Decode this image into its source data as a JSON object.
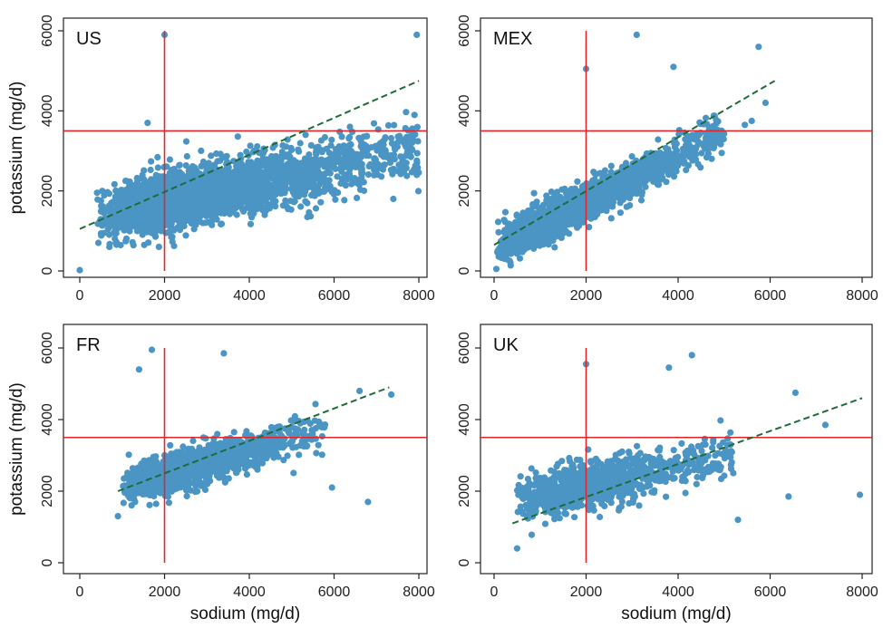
{
  "chart_data": [
    {
      "type": "scatter",
      "title": "US",
      "xlabel": "",
      "ylabel": "potassium (mg/d)",
      "xlim": [
        0,
        8000
      ],
      "ylim": [
        0,
        6000
      ],
      "xticks": [
        "0",
        "2000",
        "4000",
        "6000",
        "8000"
      ],
      "yticks": [
        "0",
        "2000",
        "4000",
        "6000"
      ],
      "marker_color": "#4a95c4",
      "cloud": {
        "x_range": [
          400,
          8000
        ],
        "y_min": [
          900,
          100
        ],
        "y_max": [
          1900,
          6000
        ],
        "sd": 650,
        "n": 2600,
        "seed": 11
      },
      "series": [
        {
          "values": [
            [
              0,
              20
            ],
            [
              700,
              600
            ],
            [
              1600,
              3700
            ],
            [
              2000,
              5900
            ],
            [
              7400,
              1800
            ],
            [
              7950,
              2400
            ],
            [
              7950,
              5900
            ]
          ]
        }
      ],
      "fit_line": {
        "x": [
          0,
          8000
        ],
        "y": [
          1050,
          4750
        ]
      },
      "reference_lines": {
        "x": 2000,
        "y": 3500
      }
    },
    {
      "type": "scatter",
      "title": "MEX",
      "xlabel": "",
      "ylabel": "",
      "xlim": [
        0,
        8000
      ],
      "ylim": [
        0,
        6000
      ],
      "xticks": [
        "0",
        "2000",
        "4000",
        "6000",
        "8000"
      ],
      "yticks": [
        "0",
        "2000",
        "4000",
        "6000"
      ],
      "marker_color": "#4a95c4",
      "cloud": {
        "x_range": [
          50,
          5000
        ],
        "y_min": [
          0,
          1700
        ],
        "y_max": [
          1200,
          5200
        ],
        "sd": 420,
        "n": 2000,
        "seed": 23
      },
      "series": [
        {
          "values": [
            [
              50,
              50
            ],
            [
              3100,
              5900
            ],
            [
              5750,
              5600
            ],
            [
              5900,
              4200
            ],
            [
              5450,
              3650
            ],
            [
              5600,
              3750
            ],
            [
              2000,
              5050
            ],
            [
              3900,
              5100
            ]
          ]
        }
      ],
      "fit_line": {
        "x": [
          0,
          6100
        ],
        "y": [
          650,
          4750
        ]
      },
      "reference_lines": {
        "x": 2000,
        "y": 3500
      }
    },
    {
      "type": "scatter",
      "title": "FR",
      "xlabel": "sodium (mg/d)",
      "ylabel": "potassium (mg/d)",
      "xlim": [
        0,
        8000
      ],
      "ylim": [
        0,
        6000
      ],
      "xticks": [
        "0",
        "2000",
        "4000",
        "6000",
        "8000"
      ],
      "yticks": [
        "0",
        "2000",
        "4000",
        "6000"
      ],
      "marker_color": "#4a95c4",
      "cloud": {
        "x_range": [
          1000,
          5800
        ],
        "y_min": [
          1400,
          2500
        ],
        "y_max": [
          2800,
          5000
        ],
        "sd": 480,
        "n": 1300,
        "seed": 37
      },
      "series": [
        {
          "values": [
            [
              1700,
              5950
            ],
            [
              3400,
              5850
            ],
            [
              1400,
              5400
            ],
            [
              6800,
              1700
            ],
            [
              5950,
              2100
            ],
            [
              7350,
              4700
            ],
            [
              6600,
              4800
            ],
            [
              900,
              1300
            ]
          ]
        }
      ],
      "fit_line": {
        "x": [
          900,
          7300
        ],
        "y": [
          2000,
          4900
        ]
      },
      "reference_lines": {
        "x": 2000,
        "y": 3500
      }
    },
    {
      "type": "scatter",
      "title": "UK",
      "xlabel": "sodium (mg/d)",
      "ylabel": "",
      "xlim": [
        0,
        8000
      ],
      "ylim": [
        0,
        6000
      ],
      "xticks": [
        "0",
        "2000",
        "4000",
        "6000",
        "8000"
      ],
      "yticks": [
        "0",
        "2000",
        "4000",
        "6000"
      ],
      "marker_color": "#4a95c4",
      "cloud": {
        "x_range": [
          500,
          5200
        ],
        "y_min": [
          700,
          1400
        ],
        "y_max": [
          2800,
          4600
        ],
        "sd": 560,
        "n": 1100,
        "seed": 53
      },
      "series": [
        {
          "values": [
            [
              2000,
              5550
            ],
            [
              4300,
              5800
            ],
            [
              3800,
              5450
            ],
            [
              7950,
              1900
            ],
            [
              6400,
              1850
            ],
            [
              6550,
              4750
            ],
            [
              7200,
              3850
            ],
            [
              5300,
              1200
            ],
            [
              500,
              400
            ]
          ]
        }
      ],
      "fit_line": {
        "x": [
          400,
          8000
        ],
        "y": [
          1100,
          4600
        ]
      },
      "reference_lines": {
        "x": 2000,
        "y": 3500
      }
    }
  ]
}
